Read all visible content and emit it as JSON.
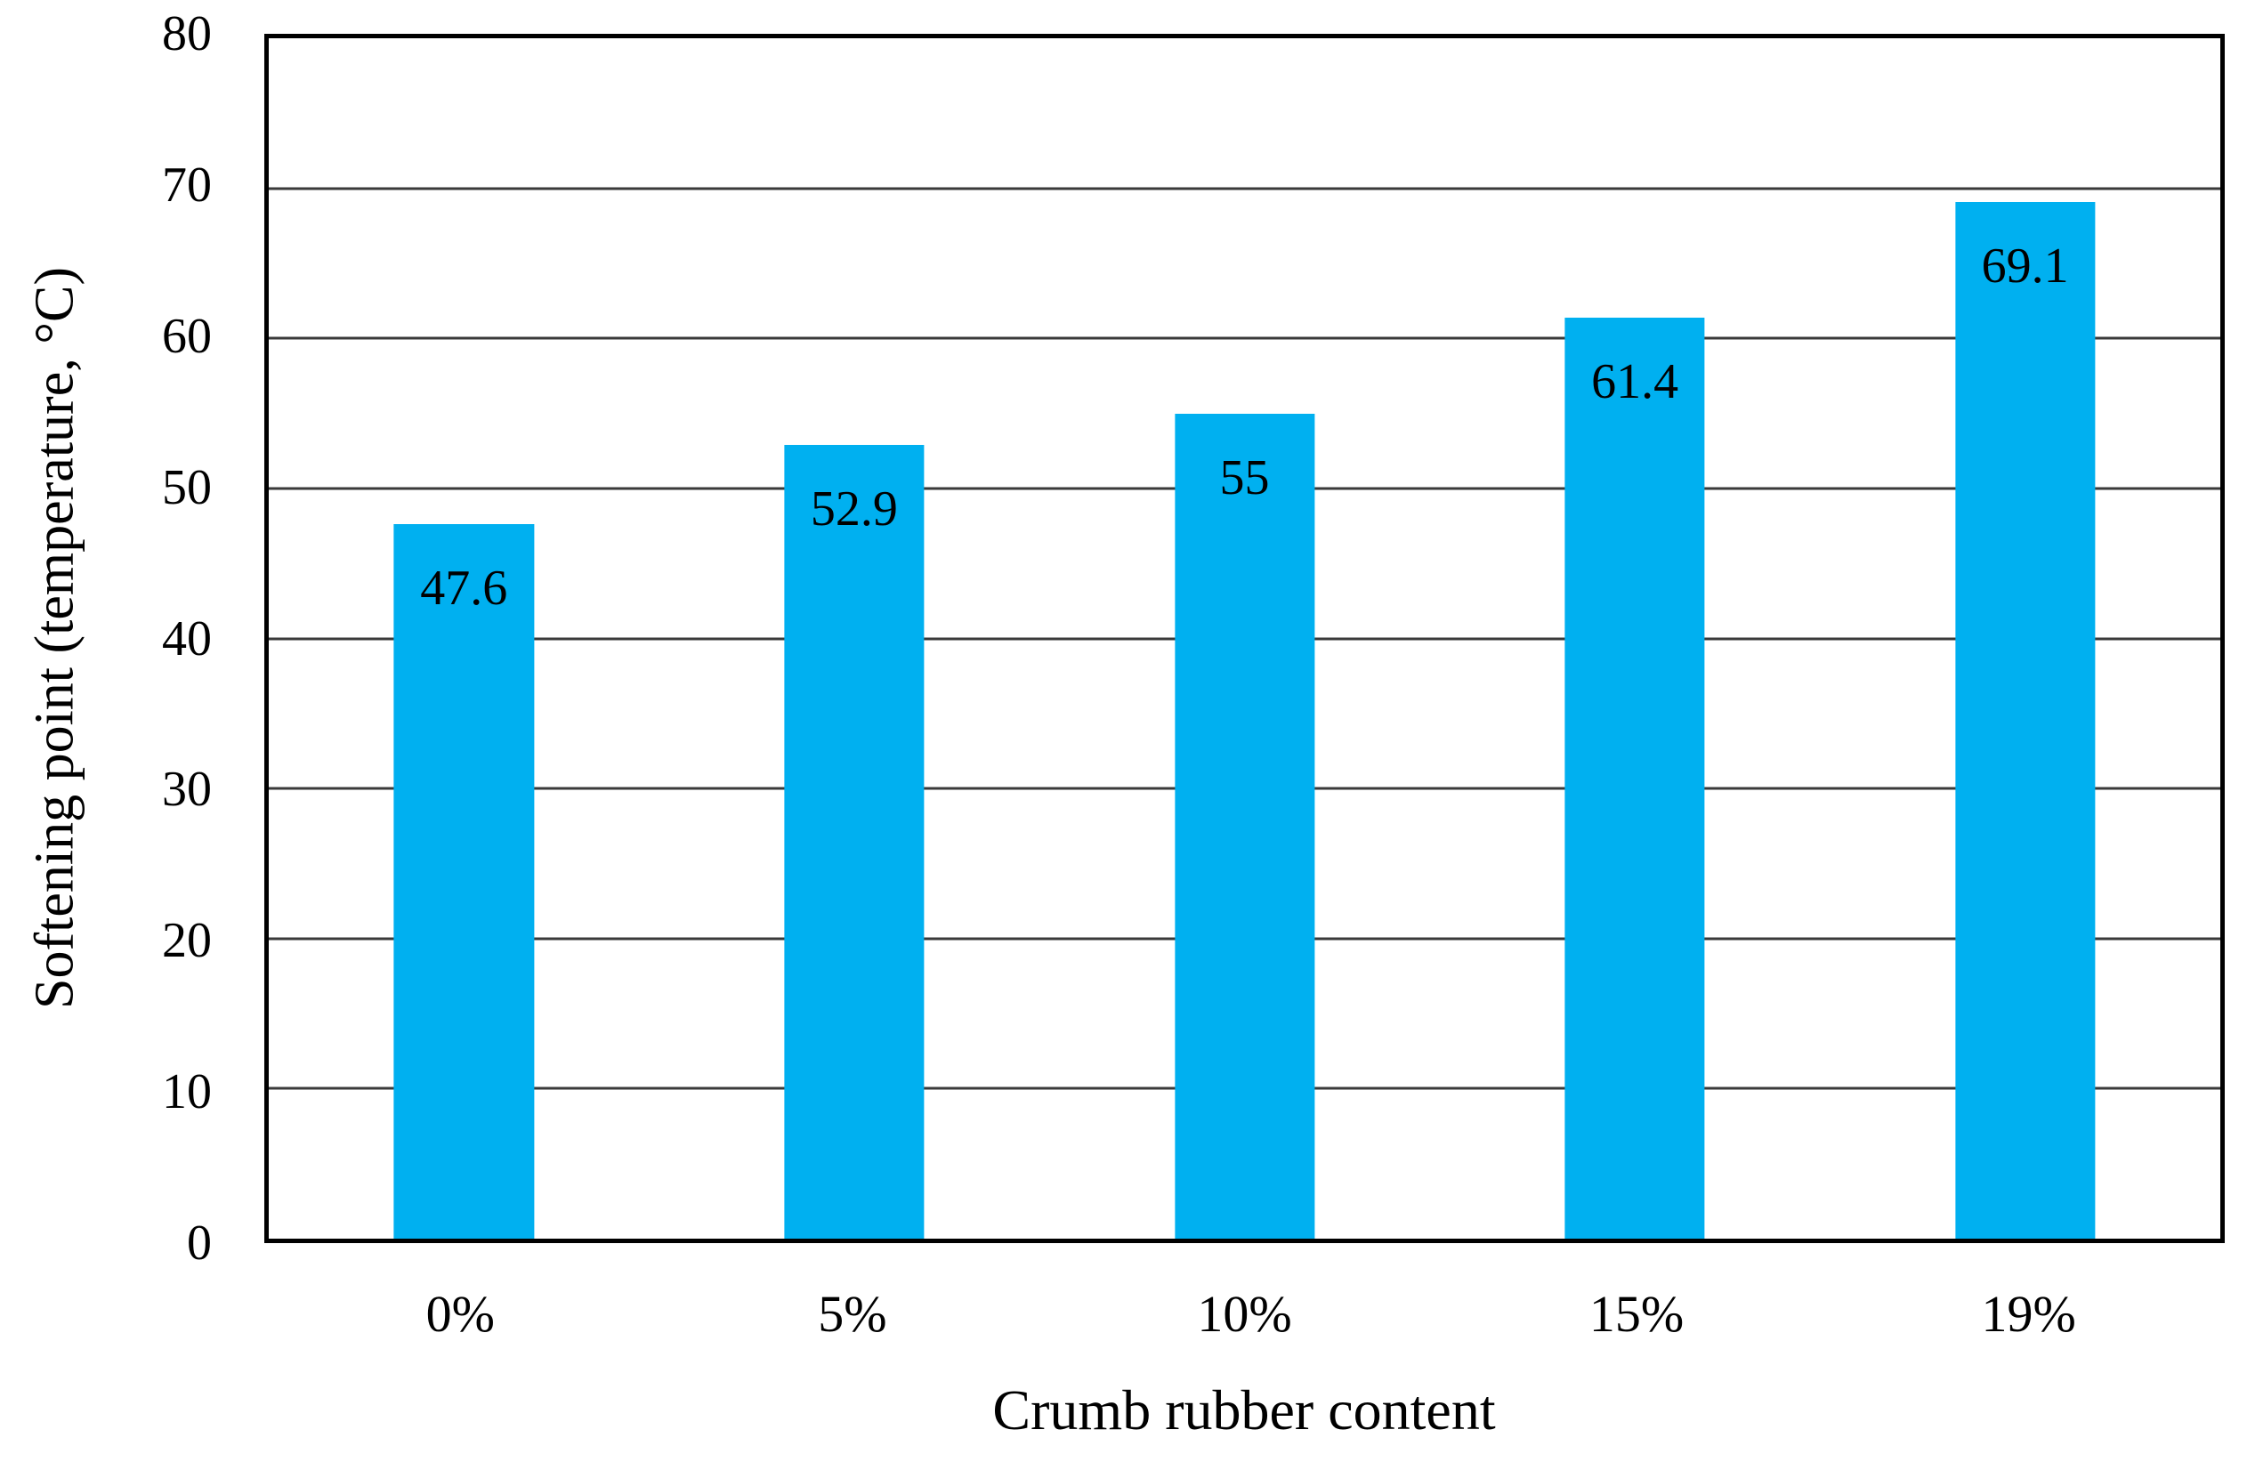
{
  "chart_data": {
    "type": "bar",
    "title": "",
    "xlabel": "Crumb rubber content",
    "ylabel": "Softening point (temperature, °C)",
    "categories": [
      "0%",
      "5%",
      "10%",
      "15%",
      "19%"
    ],
    "values": [
      47.6,
      52.9,
      55,
      61.4,
      69.1
    ],
    "value_labels": [
      "47.6",
      "52.9",
      "55",
      "61.4",
      "69.1"
    ],
    "ylim": [
      0,
      80
    ],
    "ytick_step": 10,
    "yticks": [
      0,
      10,
      20,
      30,
      40,
      50,
      60,
      70,
      80
    ],
    "grid": "horizontal",
    "legend_position": "none",
    "bar_color": "#00b0f0",
    "gridline_color": "#3a3a3a",
    "plot_border_color": "#000000",
    "value_label_color": "#000000",
    "bar_width_frac": 0.0717
  }
}
